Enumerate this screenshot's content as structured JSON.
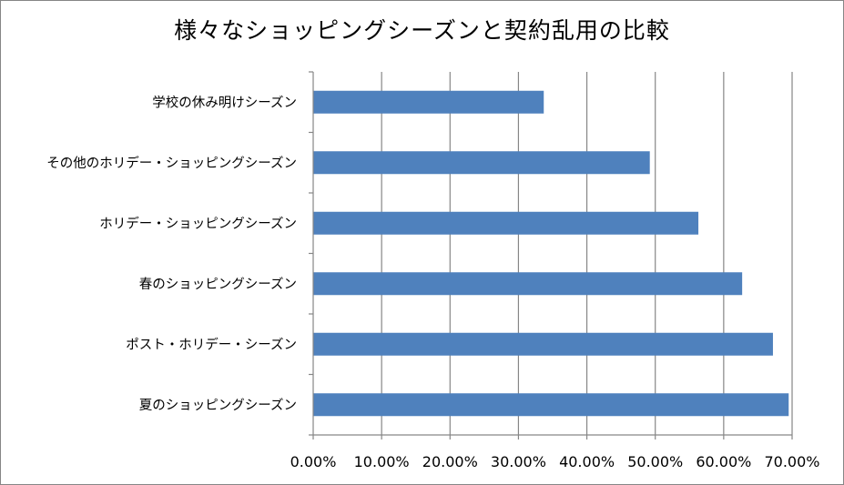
{
  "chart_data": {
    "type": "bar",
    "orientation": "horizontal",
    "title": "様々なショッピングシーズンと契約乱用の比較",
    "categories": [
      "夏のショッピングシーズン",
      "ポスト・ホリデー・シーズン",
      "春のショッピングシーズン",
      "ホリデー・ショッピングシーズン",
      "その他のホリデー・ショッピングシーズン",
      "学校の休み明けシーズン"
    ],
    "values": [
      0.695,
      0.672,
      0.627,
      0.563,
      0.492,
      0.337
    ],
    "xlim": [
      0,
      0.7
    ],
    "xticks": [
      0,
      0.1,
      0.2,
      0.3,
      0.4,
      0.5,
      0.6,
      0.7
    ],
    "xtick_labels": [
      "0.00%",
      "10.00%",
      "20.00%",
      "30.00%",
      "40.00%",
      "50.00%",
      "60.00%",
      "70.00%"
    ],
    "grid": true,
    "xlabel": "",
    "ylabel": "",
    "bar_color": "#4f81bd",
    "legend": false
  }
}
